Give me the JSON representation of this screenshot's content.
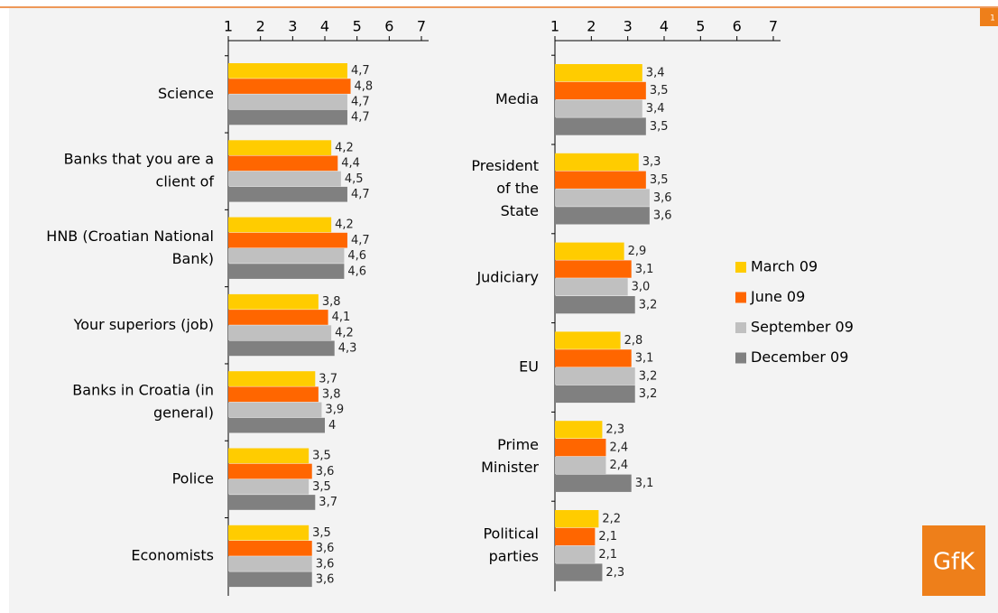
{
  "page_number": "1",
  "logo": "GfK",
  "chart_data": [
    {
      "type": "hbar",
      "categories": [
        [
          "Science"
        ],
        [
          "Banks that you are a",
          "client of"
        ],
        [
          "HNB (Croatian National",
          "Bank)"
        ],
        [
          "Your superiors (job)"
        ],
        [
          "Banks in Croatia (in",
          "general)"
        ],
        [
          "Police"
        ],
        [
          "Economists"
        ]
      ],
      "xlim": [
        1,
        7
      ],
      "xticks": [
        1,
        2,
        3,
        4,
        5,
        6,
        7
      ],
      "series": [
        {
          "name": "March 09",
          "color": "#FFCC00",
          "values": [
            4.7,
            4.2,
            4.2,
            3.8,
            3.7,
            3.5,
            3.5
          ],
          "value_labels": [
            "4,7",
            "4,2",
            "4,2",
            "3,8",
            "3,7",
            "3,5",
            "3,5"
          ]
        },
        {
          "name": "June 09",
          "color": "#FF6600",
          "values": [
            4.8,
            4.4,
            4.7,
            4.1,
            3.8,
            3.6,
            3.6
          ],
          "value_labels": [
            "4,8",
            "4,4",
            "4,7",
            "4,1",
            "3,8",
            "3,6",
            "3,6"
          ]
        },
        {
          "name": "September 09",
          "color": "#C0C0C0",
          "values": [
            4.7,
            4.5,
            4.6,
            4.2,
            3.9,
            3.5,
            3.6
          ],
          "value_labels": [
            "4,7",
            "4,5",
            "4,6",
            "4,2",
            "3,9",
            "3,5",
            "3,6"
          ]
        },
        {
          "name": "December 09",
          "color": "#808080",
          "values": [
            4.7,
            4.7,
            4.6,
            4.3,
            4,
            3.7,
            3.6
          ],
          "value_labels": [
            "4,7",
            "4,7",
            "4,6",
            "4,3",
            "4",
            "3,7",
            "3,6"
          ]
        }
      ]
    },
    {
      "type": "hbar",
      "categories": [
        [
          "Media"
        ],
        [
          "President",
          "of the",
          "State"
        ],
        [
          "Judiciary"
        ],
        [
          "EU"
        ],
        [
          "Prime",
          "Minister"
        ],
        [
          "Political",
          "parties"
        ]
      ],
      "xlim": [
        1,
        7
      ],
      "xticks": [
        1,
        2,
        3,
        4,
        5,
        6,
        7
      ],
      "legend": "right",
      "series": [
        {
          "name": "March 09",
          "color": "#FFCC00",
          "values": [
            3.4,
            3.3,
            2.9,
            2.8,
            2.3,
            2.2
          ],
          "value_labels": [
            "3,4",
            "3,3",
            "2,9",
            "2,8",
            "2,3",
            "2,2"
          ]
        },
        {
          "name": "June 09",
          "color": "#FF6600",
          "values": [
            3.5,
            3.5,
            3.1,
            3.1,
            2.4,
            2.1
          ],
          "value_labels": [
            "3,5",
            "3,5",
            "3,1",
            "3,1",
            "2,4",
            "2,1"
          ]
        },
        {
          "name": "September 09",
          "color": "#C0C0C0",
          "values": [
            3.4,
            3.6,
            3.0,
            3.2,
            2.4,
            2.1
          ],
          "value_labels": [
            "3,4",
            "3,6",
            "3,0",
            "3,2",
            "2,4",
            "2,1"
          ]
        },
        {
          "name": "December 09",
          "color": "#808080",
          "values": [
            3.5,
            3.6,
            3.2,
            3.2,
            3.1,
            2.3
          ],
          "value_labels": [
            "3,5",
            "3,6",
            "3,2",
            "3,2",
            "3,1",
            "2,3"
          ]
        }
      ]
    }
  ]
}
